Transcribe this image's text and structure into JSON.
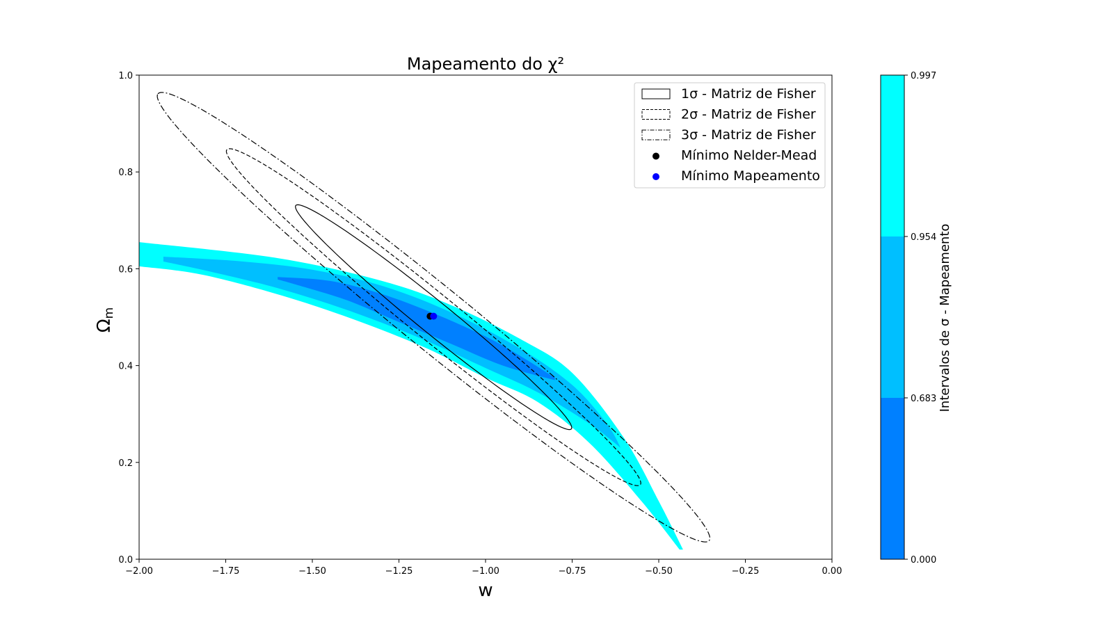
{
  "chart_data": {
    "type": "contour",
    "title": "Mapeamento do χ²",
    "xlabel": "w",
    "ylabel": "Ω",
    "ylabel_sub": "m",
    "xlim": [
      -2.0,
      0.0
    ],
    "ylim": [
      0.0,
      1.0
    ],
    "x_ticks": [
      -2.0,
      -1.75,
      -1.5,
      -1.25,
      -1.0,
      -0.75,
      -0.5,
      -0.25,
      0.0
    ],
    "x_tick_labels": [
      "−2.00",
      "−1.75",
      "−1.50",
      "−1.25",
      "−1.00",
      "−0.75",
      "−0.50",
      "−0.25",
      "0.00"
    ],
    "y_ticks": [
      0.0,
      0.2,
      0.4,
      0.6,
      0.8,
      1.0
    ],
    "y_tick_labels": [
      "0.0",
      "0.2",
      "0.4",
      "0.6",
      "0.8",
      "1.0"
    ],
    "grid": false,
    "legend_position": "top-right",
    "contour_regions": [
      {
        "level": "2σ–3σ",
        "range": [
          0.954,
          0.997
        ],
        "color": "#00ffff",
        "upper": [
          [
            -2.0,
            0.655
          ],
          [
            -1.6,
            0.622
          ],
          [
            -1.3,
            0.575
          ],
          [
            -1.1,
            0.525
          ],
          [
            -0.9,
            0.455
          ],
          [
            -0.75,
            0.385
          ],
          [
            -0.6,
            0.25
          ],
          [
            -0.5,
            0.12
          ],
          [
            -0.43,
            0.02
          ]
        ],
        "lower": [
          [
            -0.44,
            0.02
          ],
          [
            -0.55,
            0.12
          ],
          [
            -0.7,
            0.24
          ],
          [
            -0.85,
            0.325
          ],
          [
            -1.0,
            0.375
          ],
          [
            -1.2,
            0.445
          ],
          [
            -1.5,
            0.525
          ],
          [
            -1.8,
            0.585
          ],
          [
            -2.0,
            0.605
          ]
        ]
      },
      {
        "level": "1σ–2σ",
        "range": [
          0.683,
          0.954
        ],
        "color": "#00bfff",
        "upper": [
          [
            -1.93,
            0.625
          ],
          [
            -1.7,
            0.615
          ],
          [
            -1.5,
            0.598
          ],
          [
            -1.3,
            0.565
          ],
          [
            -1.1,
            0.51
          ],
          [
            -0.9,
            0.435
          ],
          [
            -0.75,
            0.36
          ],
          [
            -0.65,
            0.28
          ],
          [
            -0.61,
            0.23
          ]
        ],
        "lower": [
          [
            -0.61,
            0.23
          ],
          [
            -0.7,
            0.28
          ],
          [
            -0.85,
            0.345
          ],
          [
            -1.0,
            0.395
          ],
          [
            -1.2,
            0.46
          ],
          [
            -1.4,
            0.515
          ],
          [
            -1.6,
            0.56
          ],
          [
            -1.8,
            0.595
          ],
          [
            -1.93,
            0.615
          ]
        ]
      },
      {
        "level": "0–1σ",
        "range": [
          0.0,
          0.683
        ],
        "color": "#0080ff",
        "upper": [
          [
            -1.6,
            0.583
          ],
          [
            -1.45,
            0.575
          ],
          [
            -1.3,
            0.548
          ],
          [
            -1.15,
            0.508
          ],
          [
            -1.0,
            0.46
          ],
          [
            -0.9,
            0.42
          ],
          [
            -0.8,
            0.375
          ]
        ],
        "lower": [
          [
            -0.8,
            0.37
          ],
          [
            -0.95,
            0.4
          ],
          [
            -1.1,
            0.445
          ],
          [
            -1.25,
            0.49
          ],
          [
            -1.4,
            0.535
          ],
          [
            -1.55,
            0.568
          ],
          [
            -1.6,
            0.578
          ]
        ]
      }
    ],
    "fisher_ellipses": [
      {
        "label": "1σ - Matriz de Fisher",
        "style": "solid",
        "center": [
          -1.15,
          0.5
        ],
        "a": 0.46,
        "b": 0.037,
        "angle_deg": 150
      },
      {
        "label": "2σ - Matriz de Fisher",
        "style": "dashed",
        "center": [
          -1.15,
          0.5
        ],
        "a": 0.69,
        "b": 0.053,
        "angle_deg": 150
      },
      {
        "label": "3σ - Matriz de Fisher",
        "style": "dashdot",
        "center": [
          -1.15,
          0.5
        ],
        "a": 0.92,
        "b": 0.073,
        "angle_deg": 150
      }
    ],
    "points": [
      {
        "label": "Mínimo Nelder-Mead",
        "x": -1.16,
        "y": 0.502,
        "color": "#000000"
      },
      {
        "label": "Mínimo Mapeamento",
        "x": -1.15,
        "y": 0.502,
        "color": "#0000ff"
      }
    ],
    "colorbar": {
      "label": "Intervalos de σ - Mapeamento",
      "ticks": [
        0.0,
        0.683,
        0.954,
        0.997
      ],
      "tick_labels": [
        "0.000",
        "0.683",
        "0.954",
        "0.997"
      ],
      "colors": [
        "#0080ff",
        "#00bfff",
        "#00ffff"
      ]
    }
  }
}
